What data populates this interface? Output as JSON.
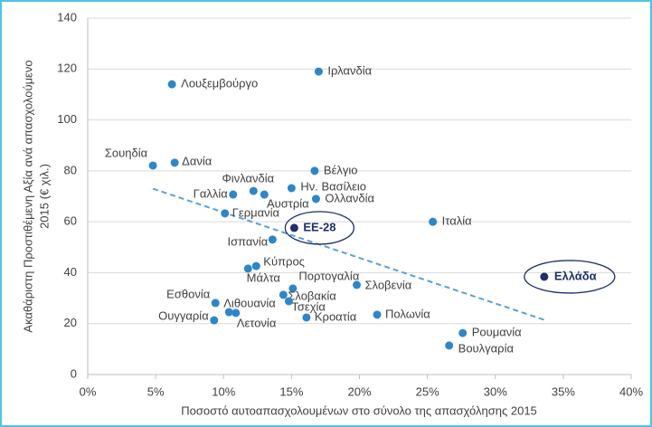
{
  "chart_data": {
    "type": "scatter",
    "xlabel": "Ποσοστό αυτοαπασχολουμένων στο σύνολο της απασχόλησης 2015",
    "ylabel": [
      "Ακαθάριστη Προστιθέμενη Αξία ανά απασχολούμενο",
      "2015 (€ χιλ.)"
    ],
    "color": "#2e86c8",
    "highlight_color": "#1f2f6b",
    "trend_color": "#5a9fd8",
    "xlim": [
      0,
      40
    ],
    "ylim": [
      0,
      140
    ],
    "xticks": [
      {
        "value": 0,
        "label": "0%"
      },
      {
        "value": 5,
        "label": "5%"
      },
      {
        "value": 10,
        "label": "10%"
      },
      {
        "value": 15,
        "label": "15%"
      },
      {
        "value": 20,
        "label": "20%"
      },
      {
        "value": 25,
        "label": "25%"
      },
      {
        "value": 30,
        "label": "30%"
      },
      {
        "value": 35,
        "label": "35%"
      },
      {
        "value": 40,
        "label": "40%"
      }
    ],
    "yticks": [
      0,
      20,
      40,
      60,
      80,
      100,
      120,
      140
    ],
    "grid": true,
    "points": [
      {
        "label": "Σουηδία",
        "x": 4.8,
        "y": 82.1
      },
      {
        "label": "Δανία",
        "x": 6.4,
        "y": 83.2
      },
      {
        "label": "Λουξεμβούργο",
        "x": 6.2,
        "y": 114
      },
      {
        "label": "Ιρλανδία",
        "x": 17.0,
        "y": 119
      },
      {
        "label": "Βέλγιο",
        "x": 16.7,
        "y": 80
      },
      {
        "label": "Ην. Βασίλειο",
        "x": 15.0,
        "y": 73.2
      },
      {
        "label": "Ολλανδία",
        "x": 16.8,
        "y": 69
      },
      {
        "label": "Αυστρία",
        "x": 13.0,
        "y": 70.7
      },
      {
        "label": "Φινλανδία",
        "x": 12.2,
        "y": 72.1
      },
      {
        "label": "Γαλλία",
        "x": 10.7,
        "y": 70.7
      },
      {
        "label": "Γερμανία",
        "x": 10.1,
        "y": 63.3
      },
      {
        "label": "Ισπανία",
        "x": 13.6,
        "y": 53
      },
      {
        "label": "ΕΕ-28",
        "x": 15.2,
        "y": 57.6,
        "highlight": true
      },
      {
        "label": "Ιταλία",
        "x": 25.4,
        "y": 60
      },
      {
        "label": "Ελλάδα",
        "x": 33.6,
        "y": 38.4,
        "highlight": true
      },
      {
        "label": "Κύπρος",
        "x": 12.4,
        "y": 42.6
      },
      {
        "label": "Μάλτα",
        "x": 11.8,
        "y": 41.6
      },
      {
        "label": "Πορτογαλία",
        "x": 15.1,
        "y": 33.8
      },
      {
        "label": "Σλοβενία",
        "x": 19.8,
        "y": 35.2
      },
      {
        "label": "Σλοβακία",
        "x": 14.4,
        "y": 31.3
      },
      {
        "label": "Τσεχία",
        "x": 14.8,
        "y": 28.8
      },
      {
        "label": "Εσθονία",
        "x": 9.4,
        "y": 28.1
      },
      {
        "label": "Λιθουανία",
        "x": 10.4,
        "y": 24.5
      },
      {
        "label": "Λετονία",
        "x": 10.9,
        "y": 24.2
      },
      {
        "label": "Κροατία",
        "x": 16.1,
        "y": 22.4
      },
      {
        "label": "Πολωνία",
        "x": 21.3,
        "y": 23.5
      },
      {
        "label": "Ουγγαρία",
        "x": 9.3,
        "y": 21.3
      },
      {
        "label": "Ρουμανία",
        "x": 27.6,
        "y": 16.3
      },
      {
        "label": "Βουλγαρία",
        "x": 26.6,
        "y": 11.4
      }
    ],
    "trendline": {
      "x": [
        4.8,
        33.7
      ],
      "y": [
        73,
        21.3
      ]
    }
  }
}
